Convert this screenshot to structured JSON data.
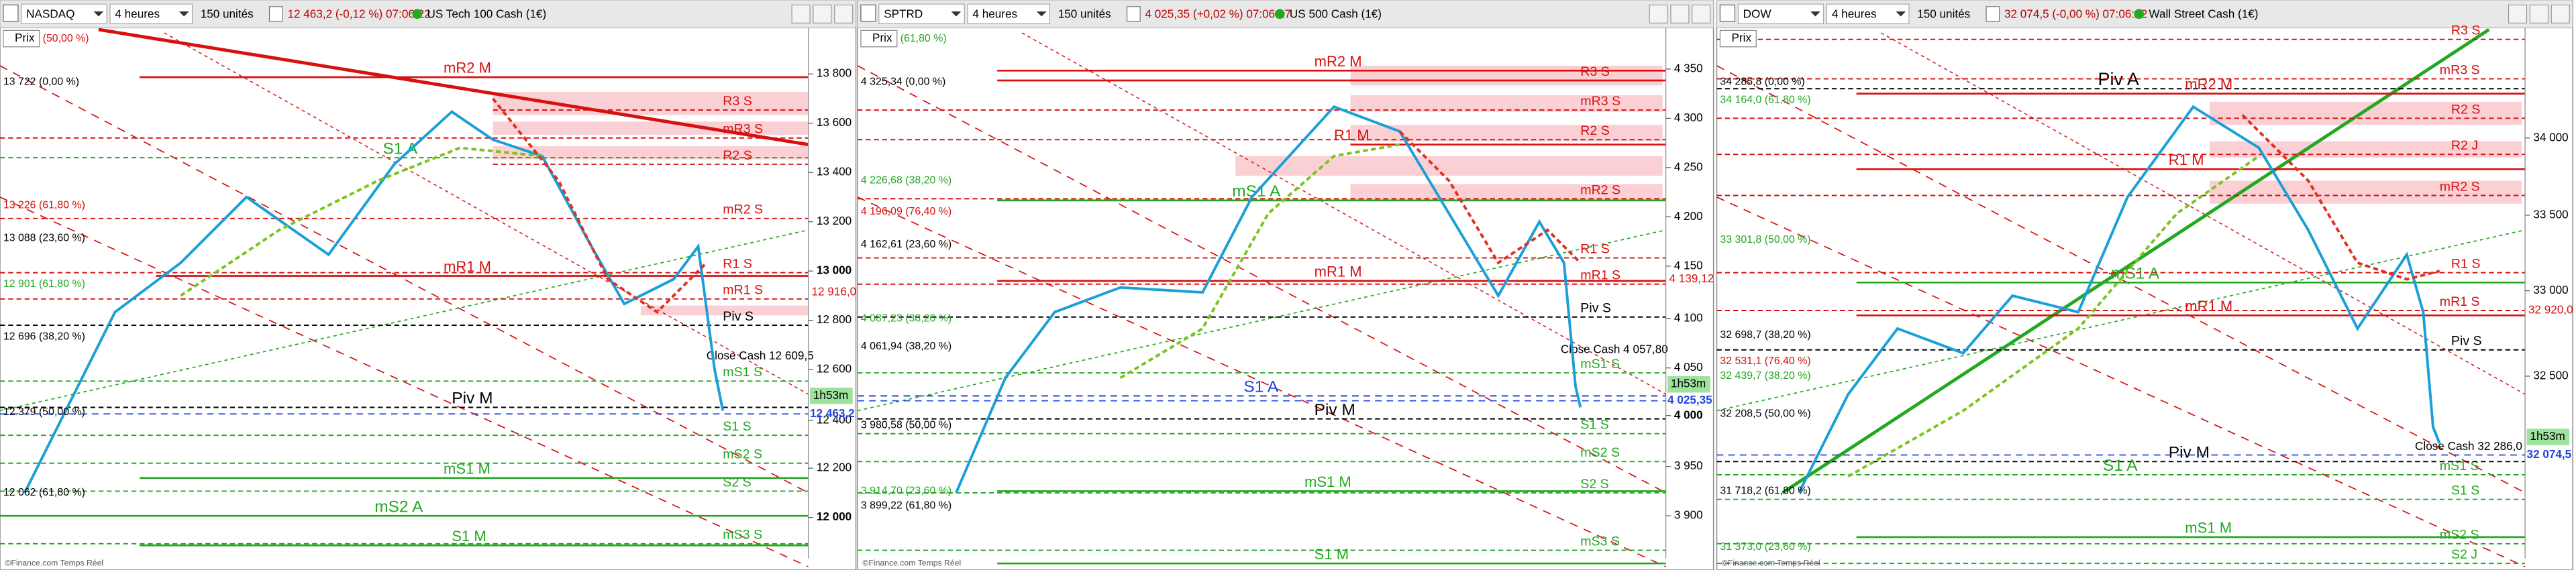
{
  "panels": [
    {
      "symbol": "NASDAQ",
      "timeframe": "4 heures",
      "units": "150 unités",
      "quote": "12 463,2 (-0,12 %) 07:06:22",
      "instrument": "US Tech 100 Cash (1€)",
      "prix": "Prix",
      "top_label": "(50,00 %)",
      "footer": "©Finance.com Temps Réel",
      "axis_ticks": [
        "13 800",
        "13 600",
        "13 400",
        "13 200",
        "13 000",
        "12 800",
        "12 600",
        "12 400",
        "12 200",
        "12 000"
      ],
      "price_red": "12 916,0",
      "timer": "1h53m",
      "last_price": "12 463,2",
      "fib_labels": [
        "13 722 (0,00 %)",
        "13 226 (61,80 %)",
        "13 088 (23,60 %)",
        "12 901 (61,80 %)",
        "12 696 (38,20 %)",
        "12 379 (50,00 %)",
        "12 062 (61,80 %)"
      ],
      "levels": [
        "mR2 M",
        "R3 S",
        "mR3 S",
        "R2 S",
        "S1 A",
        "mR2 S",
        "R1 S",
        "mR1 M",
        "mR1 S",
        "Piv S",
        "Close Cash 12 609,5",
        "mS1 S",
        "Piv M",
        "S1 S",
        "mS2 S",
        "mS1 M",
        "S2 S",
        "mS2 A",
        "S1 M",
        "mS3 S"
      ]
    },
    {
      "symbol": "SPTRD",
      "timeframe": "4 heures",
      "units": "150 unités",
      "quote": "4 025,35 (+0,02 %) 07:06:17",
      "instrument": "US 500 Cash (1€)",
      "prix": "Prix",
      "top_label": "(61,80 %)",
      "footer": "©Finance.com Temps Réel",
      "axis_ticks": [
        "4 350",
        "4 300",
        "4 250",
        "4 200",
        "4 150",
        "4 100",
        "4 050",
        "4 000",
        "3 950",
        "3 900"
      ],
      "price_red": "4 139,12",
      "timer": "1h53m",
      "last_price": "4 025,35",
      "fib_labels": [
        "4 325,34 (0,00 %)",
        "4 226,68 (38,20 %)",
        "4 196,09 (76,40 %)",
        "4 162,61 (23,60 %)",
        "4 087,23 (38,20 %)",
        "4 061,94 (38,20 %)",
        "3 980,58 (50,00 %)",
        "3 914,70 (23,60 %)",
        "3 899,22 (61,80 %)"
      ],
      "levels": [
        "mR2 M",
        "R3 S",
        "mR3 S",
        "R2 S",
        "R1 M",
        "mS1 A",
        "mR2 S",
        "R1 S",
        "mR1 M",
        "mR1 S",
        "Piv S",
        "Close Cash 4 057,80",
        "mS1 S",
        "S1 A",
        "Piv M",
        "S1 S",
        "mS2 S",
        "mS1 M",
        "S2 S",
        "mS3 S",
        "S1 M"
      ]
    },
    {
      "symbol": "DOW",
      "timeframe": "4 heures",
      "units": "150 unités",
      "quote": "32 074,5 (-0,00 %) 07:06:22",
      "instrument": "Wall Street Cash (1€)",
      "prix": "Prix",
      "top_label": "",
      "footer": "©Finance.com Temps Réel",
      "axis_ticks": [
        "34 000",
        "33 500",
        "33 000",
        "32 500"
      ],
      "price_red": "32 920,0",
      "timer": "1h53m",
      "last_price": "32 074,5",
      "fib_labels": [
        "34 285,8 (0,00 %)",
        "34 164,0 (61,80 %)",
        "33 301,8 (50,00 %)",
        "32 698,7 (38,20 %)",
        "32 531,1 (76,40 %)",
        "32 439,7 (38,20 %)",
        "32 208,5 (50,00 %)",
        "31 718,2 (61,80 %)",
        "31 373,0 (23,60 %)"
      ],
      "levels": [
        "R3 S",
        "Piv A",
        "mR2 M",
        "mR3 S",
        "R2 S",
        "R2 J",
        "R1 M",
        "mR2 S",
        "mS1 A",
        "R1 S",
        "mR1 M",
        "mR1 S",
        "Piv S",
        "Close Cash 32 286,0",
        "mS1 S",
        "Piv M",
        "S1 A",
        "S1 S",
        "mS1 M",
        "mS2 S",
        "S2 J"
      ]
    }
  ]
}
